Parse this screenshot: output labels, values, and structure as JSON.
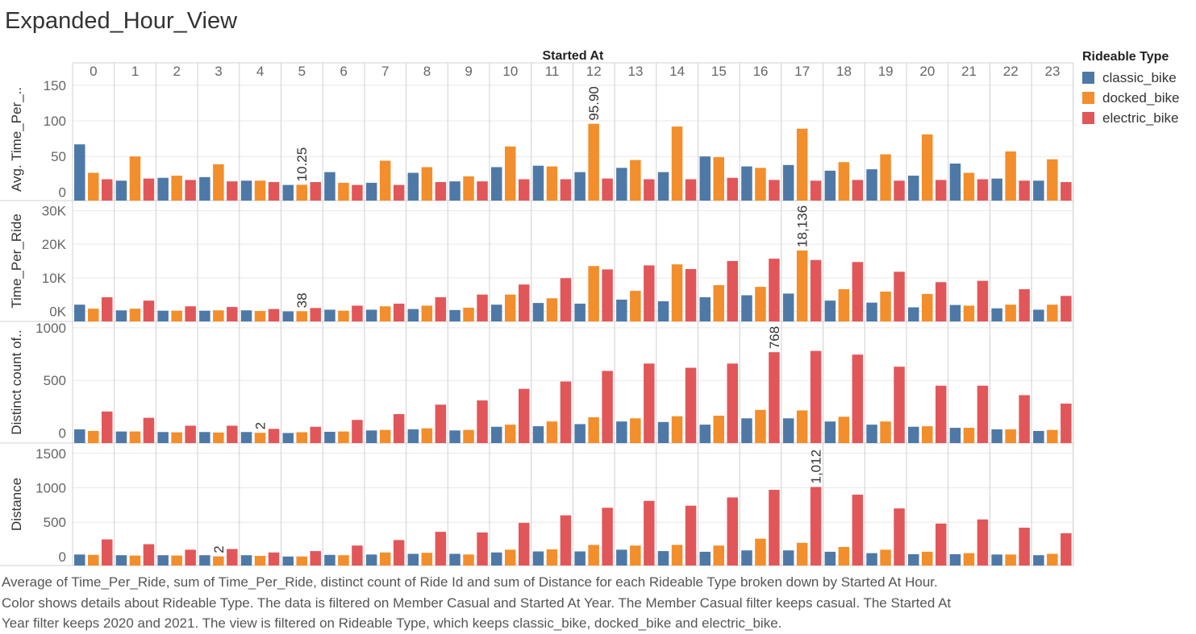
{
  "title": "Expanded_Hour_View",
  "colors": {
    "classic_bike": "#4e79a7",
    "docked_bike": "#f28e2b",
    "electric_bike": "#e15759",
    "grid": "#e9e9e9",
    "divider": "#d0d0d0",
    "axis_text": "#666666"
  },
  "legend": {
    "title": "Rideable Type",
    "items": [
      {
        "label": "classic_bike",
        "color": "#4e79a7"
      },
      {
        "label": "docked_bike",
        "color": "#f28e2b"
      },
      {
        "label": "electric_bike",
        "color": "#e15759"
      }
    ]
  },
  "caption": [
    "Average of Time_Per_Ride, sum of Time_Per_Ride, distinct count of Ride Id and sum of Distance for each Rideable Type broken down by Started At Hour.",
    "Color shows details about Rideable Type. The data is filtered on Member Casual and Started At Year. The Member Casual filter keeps casual. The Started At",
    "Year filter keeps 2020 and 2021. The view is filtered on Rideable Type, which keeps classic_bike, docked_bike and electric_bike."
  ],
  "chart_data": {
    "type": "bar",
    "column_header": "Started At",
    "categories": [
      "0",
      "1",
      "2",
      "3",
      "4",
      "5",
      "6",
      "7",
      "8",
      "9",
      "10",
      "11",
      "12",
      "13",
      "14",
      "15",
      "16",
      "17",
      "18",
      "19",
      "20",
      "21",
      "22",
      "23"
    ],
    "series_names": [
      "classic_bike",
      "docked_bike",
      "electric_bike"
    ],
    "panels": [
      {
        "ylabel": "Avg. Time_Per_..",
        "ylim": [
          -12,
          160
        ],
        "ticks": [
          {
            "v": 150,
            "label": "150"
          },
          {
            "v": 100,
            "label": "100"
          },
          {
            "v": 50,
            "label": "50"
          },
          {
            "v": 0,
            "label": "0"
          }
        ],
        "series": [
          {
            "name": "classic_bike",
            "values": [
              67,
              16,
              20,
              21,
              16,
              10,
              28,
              13,
              27,
              15,
              35,
              37,
              28,
              34,
              28,
              50,
              36,
              38,
              30,
              32,
              23,
              40,
              19,
              16
            ]
          },
          {
            "name": "docked_bike",
            "values": [
              27,
              50,
              23,
              39,
              16,
              10.25,
              13,
              44,
              35,
              22,
              64,
              36,
              95.9,
              45,
              92,
              49,
              34,
              89,
              42,
              53,
              81,
              27,
              57,
              46
            ]
          },
          {
            "name": "electric_bike",
            "values": [
              18,
              19,
              17,
              15,
              14,
              14,
              10,
              10,
              14,
              15,
              18,
              18,
              19,
              18,
              18,
              20,
              17,
              16,
              17,
              16,
              17,
              18,
              16,
              14
            ]
          }
        ],
        "annotations": [
          {
            "category": "5",
            "series": "docked_bike",
            "label": "10.25"
          },
          {
            "category": "12",
            "series": "docked_bike",
            "label": "95.90"
          }
        ]
      },
      {
        "ylabel": "Time_Per_Ride",
        "ylim": [
          -3000,
          33000
        ],
        "ticks": [
          {
            "v": 30000,
            "label": "30K"
          },
          {
            "v": 20000,
            "label": "20K"
          },
          {
            "v": 10000,
            "label": "10K"
          },
          {
            "v": 0,
            "label": "0K"
          }
        ],
        "series": [
          {
            "name": "classic_bike",
            "values": [
              2000,
              300,
              200,
              200,
              300,
              0,
              500,
              500,
              700,
              400,
              2000,
              2500,
              2300,
              3500,
              3000,
              4200,
              4800,
              5300,
              3200,
              2600,
              1200,
              1900,
              900,
              500
            ]
          },
          {
            "name": "docked_bike",
            "values": [
              800,
              800,
              200,
              300,
              100,
              38,
              200,
              1500,
              1700,
              1100,
              5000,
              3900,
              13500,
              6100,
              14000,
              7800,
              7300,
              18136,
              6600,
              5900,
              5200,
              1700,
              2000,
              2000
            ]
          },
          {
            "name": "electric_bike",
            "values": [
              4200,
              3200,
              1500,
              1300,
              700,
              1000,
              1700,
              2300,
              4200,
              5000,
              8000,
              9900,
              12500,
              13700,
              12600,
              15000,
              15700,
              15300,
              14700,
              11800,
              8700,
              9100,
              6600,
              4600
            ]
          }
        ],
        "annotations": [
          {
            "category": "5",
            "series": "docked_bike",
            "label": "38"
          },
          {
            "category": "17",
            "series": "docked_bike",
            "label": "18,136"
          }
        ]
      },
      {
        "ylabel": "Distinct count of..",
        "ylim": [
          -95,
          1060
        ],
        "ticks": [
          {
            "v": 1000,
            "label": "1000"
          },
          {
            "v": 500,
            "label": "500"
          },
          {
            "v": 0,
            "label": "0"
          }
        ],
        "series": [
          {
            "name": "classic_bike",
            "values": [
              35,
              15,
              10,
              10,
              10,
              0,
              12,
              25,
              35,
              25,
              60,
              65,
              85,
              110,
              105,
              80,
              140,
              140,
              110,
              80,
              60,
              50,
              35,
              20
            ]
          },
          {
            "name": "docked_bike",
            "values": [
              20,
              15,
              7,
              5,
              2,
              8,
              15,
              30,
              45,
              30,
              80,
              110,
              150,
              140,
              160,
              165,
              220,
              215,
              155,
              110,
              65,
              50,
              35,
              30
            ]
          },
          {
            "name": "electric_bike",
            "values": [
              205,
              145,
              70,
              70,
              40,
              60,
              125,
              180,
              270,
              310,
              420,
              490,
              590,
              660,
              620,
              660,
              768,
              780,
              745,
              630,
              450,
              450,
              360,
              280
            ]
          }
        ],
        "annotations": [
          {
            "category": "4",
            "series": "docked_bike",
            "label": "2"
          },
          {
            "category": "16",
            "series": "electric_bike",
            "label": "768"
          }
        ]
      },
      {
        "ylabel": "Distance",
        "ylim": [
          -130,
          1650
        ],
        "ticks": [
          {
            "v": 1500,
            "label": "1500"
          },
          {
            "v": 1000,
            "label": "1000"
          },
          {
            "v": 500,
            "label": "500"
          },
          {
            "v": 0,
            "label": "0"
          }
        ],
        "series": [
          {
            "name": "classic_bike",
            "values": [
              30,
              20,
              20,
              20,
              20,
              0,
              25,
              30,
              40,
              40,
              60,
              75,
              75,
              100,
              80,
              70,
              90,
              90,
              70,
              50,
              35,
              35,
              30,
              20
            ]
          },
          {
            "name": "docked_bike",
            "values": [
              25,
              15,
              15,
              2,
              10,
              0,
              20,
              60,
              55,
              30,
              100,
              105,
              170,
              160,
              170,
              160,
              260,
              200,
              140,
              100,
              70,
              50,
              30,
              40
            ]
          },
          {
            "name": "electric_bike",
            "values": [
              250,
              180,
              100,
              110,
              60,
              80,
              160,
              240,
              360,
              350,
              490,
              600,
              710,
              810,
              740,
              860,
              970,
              1012,
              900,
              700,
              480,
              540,
              420,
              340
            ]
          }
        ],
        "annotations": [
          {
            "category": "3",
            "series": "docked_bike",
            "label": "2"
          },
          {
            "category": "17",
            "series": "electric_bike",
            "label": "1,012"
          }
        ]
      }
    ]
  }
}
